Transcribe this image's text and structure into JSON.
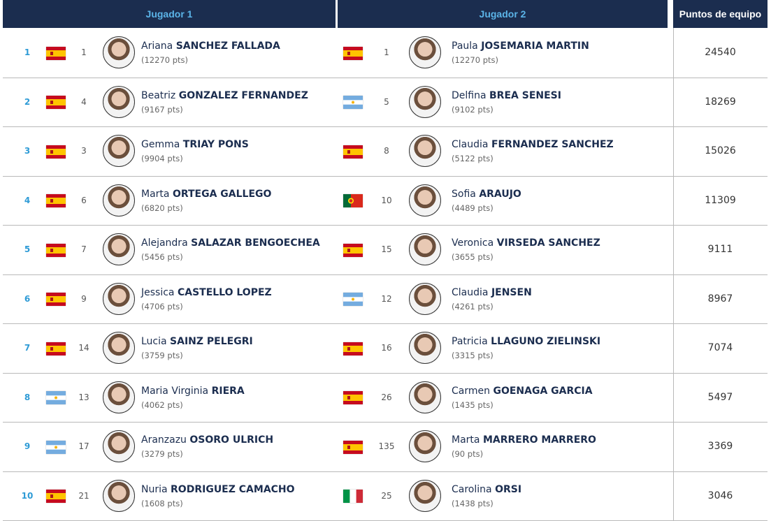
{
  "header": [
    "Jugador 1",
    "Jugador 2",
    "Puntos de equipo"
  ],
  "rows": [
    {
      "position": 1,
      "player1": {
        "rank": 1,
        "first": "Ariana",
        "last": "SANCHEZ FALLADA",
        "points": "(12270 pts)",
        "flag": "es"
      },
      "player2": {
        "rank": 1,
        "first": "Paula",
        "last": "JOSEMARIA MARTIN",
        "points": "(12270 pts)",
        "flag": "es"
      },
      "team_points": 24540
    },
    {
      "position": 2,
      "player1": {
        "rank": 4,
        "first": "Beatriz",
        "last": "GONZALEZ FERNANDEZ",
        "points": "(9167 pts)",
        "flag": "es"
      },
      "player2": {
        "rank": 5,
        "first": "Delfina",
        "last": "BREA SENESI",
        "points": "(9102 pts)",
        "flag": "ar"
      },
      "team_points": 18269
    },
    {
      "position": 3,
      "player1": {
        "rank": 3,
        "first": "Gemma",
        "last": "TRIAY PONS",
        "points": "(9904 pts)",
        "flag": "es"
      },
      "player2": {
        "rank": 8,
        "first": "Claudia",
        "last": "FERNANDEZ SANCHEZ",
        "points": "(5122 pts)",
        "flag": "es"
      },
      "team_points": 15026
    },
    {
      "position": 4,
      "player1": {
        "rank": 6,
        "first": "Marta",
        "last": "ORTEGA GALLEGO",
        "points": "(6820 pts)",
        "flag": "es"
      },
      "player2": {
        "rank": 10,
        "first": "Sofia",
        "last": "ARAUJO",
        "points": "(4489 pts)",
        "flag": "pt"
      },
      "team_points": 11309
    },
    {
      "position": 5,
      "player1": {
        "rank": 7,
        "first": "Alejandra",
        "last": "SALAZAR BENGOECHEA",
        "points": "(5456 pts)",
        "flag": "es"
      },
      "player2": {
        "rank": 15,
        "first": "Veronica",
        "last": "VIRSEDA SANCHEZ",
        "points": "(3655 pts)",
        "flag": "es"
      },
      "team_points": 9111
    },
    {
      "position": 6,
      "player1": {
        "rank": 9,
        "first": "Jessica",
        "last": "CASTELLO LOPEZ",
        "points": "(4706 pts)",
        "flag": "es"
      },
      "player2": {
        "rank": 12,
        "first": "Claudia",
        "last": "JENSEN",
        "points": "(4261 pts)",
        "flag": "ar"
      },
      "team_points": 8967
    },
    {
      "position": 7,
      "player1": {
        "rank": 14,
        "first": "Lucia",
        "last": "SAINZ PELEGRI",
        "points": "(3759 pts)",
        "flag": "es"
      },
      "player2": {
        "rank": 16,
        "first": "Patricia",
        "last": "LLAGUNO ZIELINSKI",
        "points": "(3315 pts)",
        "flag": "es"
      },
      "team_points": 7074
    },
    {
      "position": 8,
      "player1": {
        "rank": 13,
        "first": "Maria Virginia",
        "last": "RIERA",
        "points": "(4062 pts)",
        "flag": "ar"
      },
      "player2": {
        "rank": 26,
        "first": "Carmen",
        "last": "GOENAGA GARCIA",
        "points": "(1435 pts)",
        "flag": "es"
      },
      "team_points": 5497
    },
    {
      "position": 9,
      "player1": {
        "rank": 17,
        "first": "Aranzazu",
        "last": "OSORO ULRICH",
        "points": "(3279 pts)",
        "flag": "ar"
      },
      "player2": {
        "rank": 135,
        "first": "Marta",
        "last": "MARRERO MARRERO",
        "points": "(90 pts)",
        "flag": "es"
      },
      "team_points": 3369
    },
    {
      "position": 10,
      "player1": {
        "rank": 21,
        "first": "Nuria",
        "last": "RODRIGUEZ CAMACHO",
        "points": "(1608 pts)",
        "flag": "es"
      },
      "player2": {
        "rank": 25,
        "first": "Carolina",
        "last": "ORSI",
        "points": "(1438 pts)",
        "flag": "it"
      },
      "team_points": 3046
    }
  ]
}
